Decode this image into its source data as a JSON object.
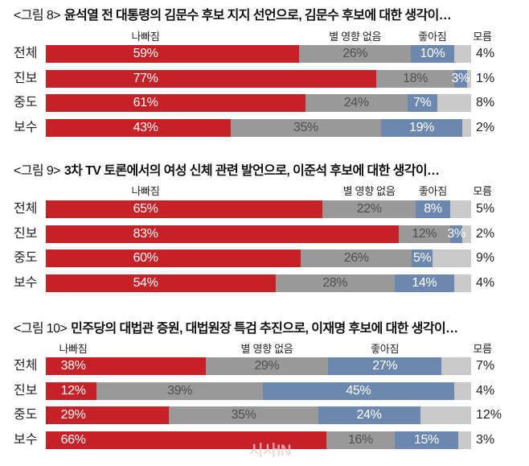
{
  "watermark": "시사IN",
  "chart_data": [
    {
      "type": "bar",
      "orientation": "horizontal",
      "stacked": true,
      "figure_label": "<그림 8>",
      "title": "윤석열 전 대통령의 김문수 후보 지지 선언으로, 김문수 후보에 대한 생각이…",
      "categories": [
        "전체",
        "진보",
        "중도",
        "보수"
      ],
      "series": [
        {
          "name": "나빠짐",
          "color": "#c62127",
          "values": [
            59,
            77,
            61,
            43
          ],
          "labels": [
            "59%",
            "77%",
            "61%",
            "43%"
          ]
        },
        {
          "name": "별 영향 없음",
          "color": "#999999",
          "values": [
            26,
            18,
            24,
            35
          ],
          "labels": [
            "26%",
            "18%",
            "24%",
            "35%"
          ]
        },
        {
          "name": "좋아짐",
          "color": "#6c88ae",
          "values": [
            10,
            3,
            7,
            19
          ],
          "labels": [
            "10%",
            "3%",
            "7%",
            "19%"
          ]
        },
        {
          "name": "모름",
          "color": "#c9c9c9",
          "values": [
            4,
            1,
            8,
            2
          ],
          "labels": [
            "4%",
            "1%",
            "8%",
            "2%"
          ]
        }
      ],
      "xlim": [
        0,
        100
      ],
      "unit": "%",
      "grid": false,
      "legend": "top"
    },
    {
      "type": "bar",
      "orientation": "horizontal",
      "stacked": true,
      "figure_label": "<그림 9>",
      "title": "3차 TV 토론에서의 여성 신체 관련 발언으로, 이준석 후보에 대한 생각이…",
      "categories": [
        "전체",
        "진보",
        "중도",
        "보수"
      ],
      "series": [
        {
          "name": "나빠짐",
          "color": "#c62127",
          "values": [
            65,
            83,
            60,
            54
          ],
          "labels": [
            "65%",
            "83%",
            "60%",
            "54%"
          ]
        },
        {
          "name": "별 영향 없음",
          "color": "#999999",
          "values": [
            22,
            12,
            26,
            28
          ],
          "labels": [
            "22%",
            "12%",
            "26%",
            "28%"
          ]
        },
        {
          "name": "좋아짐",
          "color": "#6c88ae",
          "values": [
            8,
            3,
            5,
            14
          ],
          "labels": [
            "8%",
            "3%",
            "5%",
            "14%"
          ]
        },
        {
          "name": "모름",
          "color": "#c9c9c9",
          "values": [
            5,
            2,
            9,
            4
          ],
          "labels": [
            "5%",
            "2%",
            "9%",
            "4%"
          ]
        }
      ],
      "xlim": [
        0,
        100
      ],
      "unit": "%",
      "grid": false,
      "legend": "top"
    },
    {
      "type": "bar",
      "orientation": "horizontal",
      "stacked": true,
      "figure_label": "<그림 10>",
      "title": "민주당의 대법관 증원, 대법원장 특검 추진으로, 이재명 후보에 대한 생각이…",
      "categories": [
        "전체",
        "진보",
        "중도",
        "보수"
      ],
      "series": [
        {
          "name": "나빠짐",
          "color": "#c62127",
          "values": [
            38,
            12,
            29,
            66
          ],
          "labels": [
            "38%",
            "12%",
            "29%",
            "66%"
          ]
        },
        {
          "name": "별 영향 없음",
          "color": "#999999",
          "values": [
            29,
            39,
            35,
            16
          ],
          "labels": [
            "29%",
            "39%",
            "35%",
            "16%"
          ]
        },
        {
          "name": "좋아짐",
          "color": "#6c88ae",
          "values": [
            27,
            45,
            24,
            15
          ],
          "labels": [
            "27%",
            "45%",
            "24%",
            "15%"
          ]
        },
        {
          "name": "모름",
          "color": "#c9c9c9",
          "values": [
            7,
            4,
            12,
            3
          ],
          "labels": [
            "7%",
            "4%",
            "12%",
            "3%"
          ]
        }
      ],
      "xlim": [
        0,
        100
      ],
      "unit": "%",
      "grid": false,
      "legend": "top"
    }
  ]
}
